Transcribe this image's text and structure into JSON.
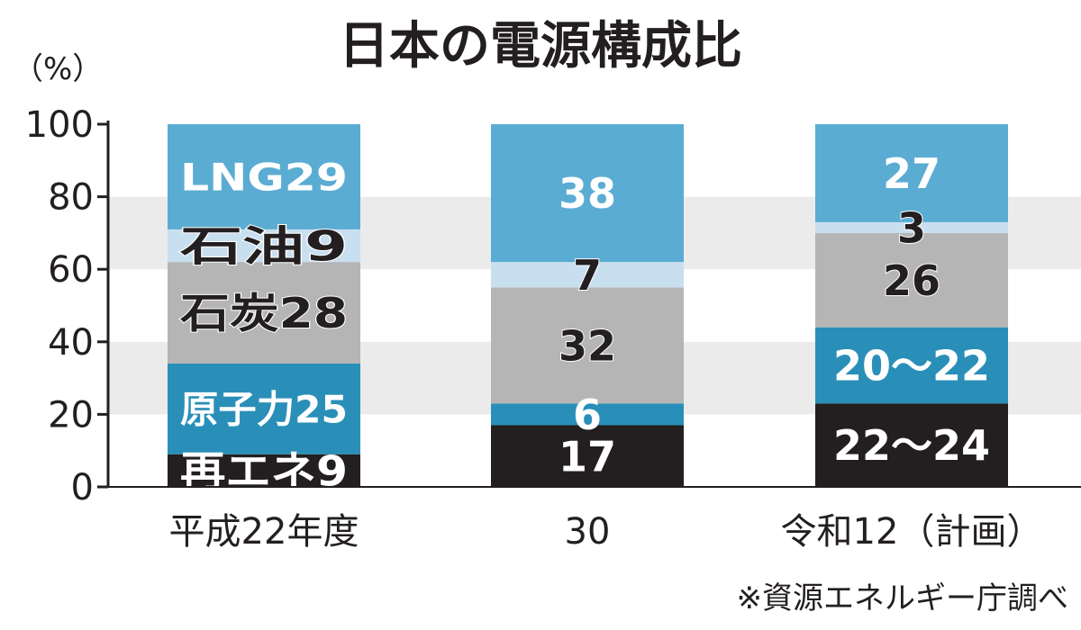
{
  "chart_data": {
    "type": "bar",
    "stacked": true,
    "title": "日本の電源構成比",
    "y_unit_label": "（%）",
    "ylim": [
      0,
      100
    ],
    "yticks": [
      0,
      20,
      40,
      60,
      80,
      100
    ],
    "grid": "alternating gray bands",
    "categories": [
      "平成22年度",
      "30",
      "令和12（計画）"
    ],
    "series": [
      {
        "name": "再エネ",
        "values": [
          9,
          17,
          23
        ],
        "labels": [
          "9",
          "17",
          "22～24"
        ],
        "color": "#231f20",
        "text_color": "#ffffff"
      },
      {
        "name": "原子力",
        "values": [
          25,
          6,
          21
        ],
        "labels": [
          "25",
          "6",
          "20～22"
        ],
        "color": "#2a8fb8",
        "text_color": "#ffffff"
      },
      {
        "name": "石炭",
        "values": [
          28,
          32,
          26
        ],
        "labels": [
          "28",
          "32",
          "26"
        ],
        "color": "#b5b5b6",
        "text_color": "#231f20"
      },
      {
        "name": "石油",
        "values": [
          9,
          7,
          3
        ],
        "labels": [
          "9",
          "7",
          "3"
        ],
        "color": "#c8dff0",
        "text_color": "#231f20"
      },
      {
        "name": "LNG",
        "values": [
          29,
          38,
          27
        ],
        "labels": [
          "29",
          "38",
          "27"
        ],
        "color": "#5aacd3",
        "text_color": "#ffffff"
      }
    ],
    "source": "※資源エネルギー庁調べ"
  }
}
